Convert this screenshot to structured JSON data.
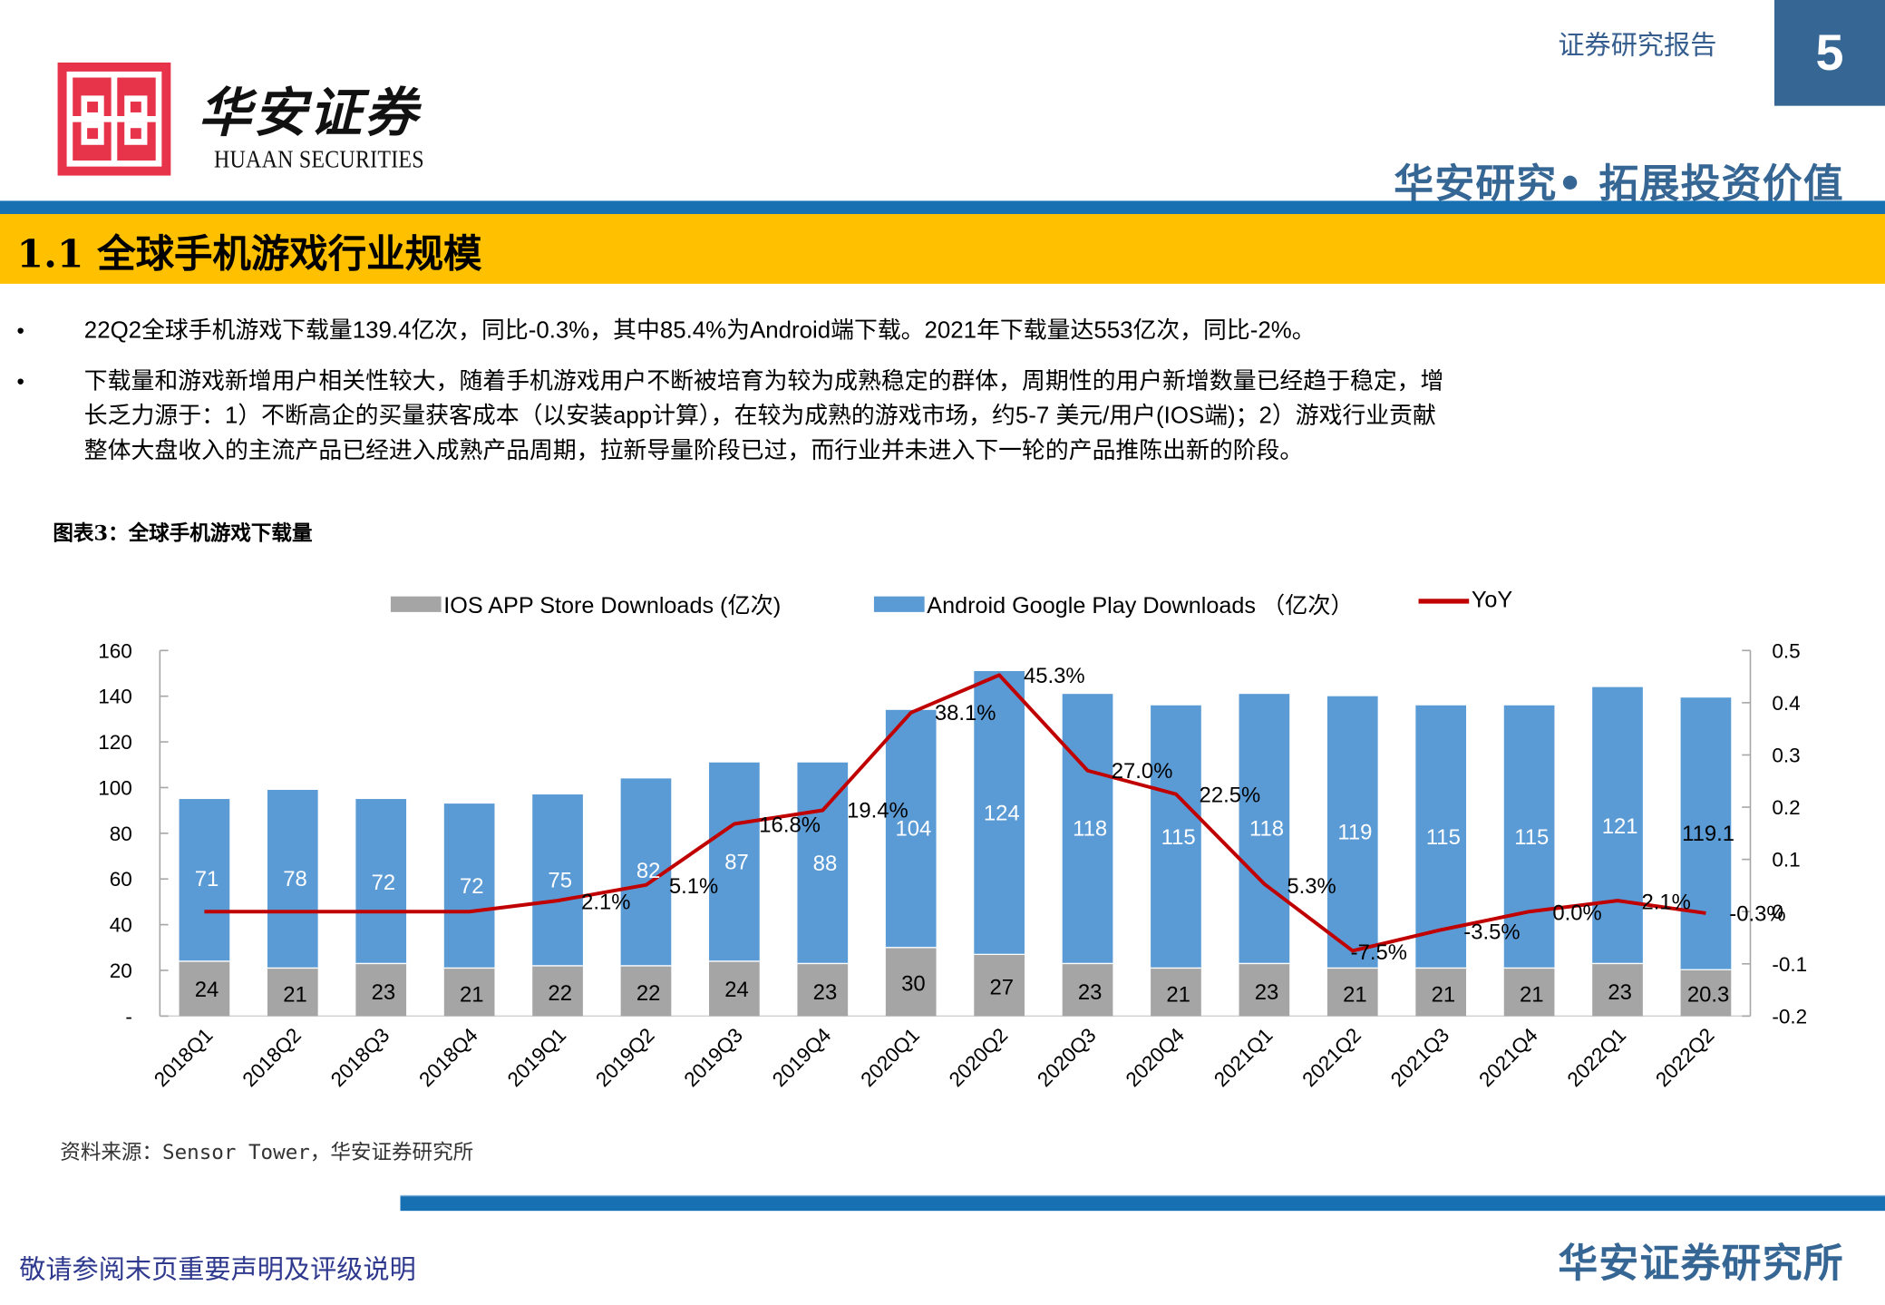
{
  "header": {
    "logo_cn": "华安证券",
    "logo_en": "HUAAN SECURITIES",
    "report_type": "证券研究报告",
    "page_number": "5",
    "slogan": "华安研究• 拓展投资价值"
  },
  "section": {
    "title": "1.1 全球手机游戏行业规模"
  },
  "bullets": [
    {
      "dot": "•",
      "lines": [
        "22Q2全球手机游戏下载量139.4亿次，同比-0.3%，其中85.4%为Android端下载。2021年下载量达553亿次，同比-2%。"
      ]
    },
    {
      "dot": "•",
      "lines": [
        "下载量和游戏新增用户相关性较大，随着手机游戏用户不断被培育为较为成熟稳定的群体，周期性的用户新增数量已经趋于稳定，增",
        "长乏力源于：1）不断高企的买量获客成本（以安装app计算），在较为成熟的游戏市场，约5-7 美元/用户(IOS端)；2）游戏行业贡献",
        "整体大盘收入的主流产品已经进入成熟产品周期，拉新导量阶段已过，而行业并未进入下一轮的产品推陈出新的阶段。"
      ]
    }
  ],
  "figure": {
    "title": "图表3：全球手机游戏下载量",
    "source": "资料来源：Sensor Tower，华安证券研究所"
  },
  "colors": {
    "ios": "#a5a5a5",
    "android": "#5b9bd5",
    "yoy": "#c00000",
    "brand_blue": "#356694",
    "band_yellow": "#ffc000",
    "rule_blue": "#1670b2",
    "logo_red": "#e8344b"
  },
  "chart_data": {
    "type": "bar",
    "stacked": true,
    "title": "图表3：全球手机游戏下载量",
    "xlabel": "",
    "ylabel": "",
    "categories": [
      "2018Q1",
      "2018Q2",
      "2018Q3",
      "2018Q4",
      "2019Q1",
      "2019Q2",
      "2019Q3",
      "2019Q4",
      "2020Q1",
      "2020Q2",
      "2020Q3",
      "2020Q4",
      "2021Q1",
      "2021Q2",
      "2021Q3",
      "2021Q4",
      "2022Q1",
      "2022Q2"
    ],
    "series": [
      {
        "name": "IOS APP Store Downloads (亿次)",
        "type": "bar",
        "axis": "left",
        "values": [
          24,
          21,
          23,
          21,
          22,
          22,
          24,
          23,
          30,
          27,
          23,
          21,
          23,
          21,
          21,
          21,
          23,
          20.3
        ],
        "labels": [
          "24",
          "21",
          "23",
          "21",
          "22",
          "22",
          "24",
          "23",
          "30",
          "27",
          "23",
          "21",
          "23",
          "21",
          "21",
          "21",
          "23",
          "20.3"
        ]
      },
      {
        "name": "Android Google Play Downloads （亿次）",
        "type": "bar",
        "axis": "left",
        "values": [
          71,
          78,
          72,
          72,
          75,
          82,
          87,
          88,
          104,
          124,
          118,
          115,
          118,
          119,
          115,
          115,
          121,
          119.1
        ],
        "labels": [
          "71",
          "78",
          "72",
          "72",
          "75",
          "82",
          "87",
          "88",
          "104",
          "124",
          "118",
          "115",
          "118",
          "119",
          "115",
          "115",
          "121",
          "119.1"
        ]
      },
      {
        "name": "YoY",
        "type": "line",
        "axis": "right",
        "values": [
          0,
          0,
          0,
          0,
          0.021,
          0.051,
          0.168,
          0.194,
          0.381,
          0.453,
          0.27,
          0.225,
          0.053,
          -0.075,
          -0.035,
          0.0,
          0.021,
          -0.003
        ],
        "labels": [
          "",
          "",
          "",
          "",
          "2.1%",
          "5.1%",
          "16.8%",
          "19.4%",
          "38.1%",
          "45.3%",
          "27.0%",
          "22.5%",
          "5.3%",
          "-7.5%",
          "-3.5%",
          "0.0%",
          "2.1%",
          "-0.3%"
        ]
      }
    ],
    "left_axis": {
      "ylim": [
        0,
        160
      ],
      "ticks": [
        "-",
        "20",
        "40",
        "60",
        "80",
        "100",
        "120",
        "140",
        "160"
      ]
    },
    "right_axis": {
      "ylim": [
        -0.2,
        0.5
      ],
      "ticks": [
        "-0.2",
        "-0.1",
        "0",
        "0.1",
        "0.2",
        "0.3",
        "0.4",
        "0.5"
      ]
    },
    "legend": {
      "position": "top",
      "items": [
        "IOS APP Store Downloads (亿次)",
        "Android Google Play Downloads （亿次）",
        "YoY"
      ]
    },
    "grid": false
  },
  "footer": {
    "disclaimer": "敬请参阅末页重要声明及评级说明",
    "brand": "华安证券研究所"
  }
}
